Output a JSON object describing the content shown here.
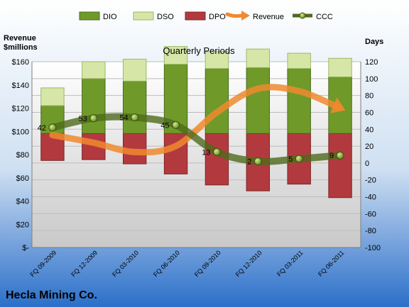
{
  "chart_data": {
    "type": "bar",
    "title": "Quarterly Periods",
    "left_axis_label": [
      "Revenue",
      "$millions"
    ],
    "right_axis_label": "Days",
    "company": "Hecla Mining Co.",
    "categories": [
      "FQ 09-2009",
      "FQ 12-2009",
      "FQ 03-2010",
      "FQ 06-2010",
      "FQ 09-2010",
      "FQ 12-2010",
      "FQ 03-2011",
      "FQ 06-2011"
    ],
    "left_ticks": [
      "$-",
      "$20",
      "$40",
      "$60",
      "$80",
      "$100",
      "$120",
      "$140",
      "$160"
    ],
    "right_ticks": [
      "-100",
      "-80",
      "-60",
      "-40",
      "-20",
      "0",
      "20",
      "40",
      "60",
      "80",
      "100",
      "120"
    ],
    "ylim_right": [
      -100,
      120
    ],
    "series": [
      {
        "name": "DIO",
        "values": [
          -2,
          30,
          27,
          47,
          42,
          43,
          42,
          32
        ]
      },
      {
        "name": "DSO",
        "values": [
          21,
          20,
          26,
          21,
          20,
          22,
          18,
          22
        ]
      },
      {
        "name": "DPO",
        "values": [
          -32,
          -31,
          -36,
          -48,
          -61,
          -68,
          -60,
          -76
        ]
      },
      {
        "name": "Revenue",
        "values": [
          33,
          24,
          13,
          20,
          60,
          88,
          85,
          65
        ]
      },
      {
        "name": "CCC",
        "values": [
          42,
          53,
          54,
          45,
          13,
          2,
          5,
          9
        ]
      }
    ],
    "ccc_labels": [
      "42",
      "53",
      "54",
      "45",
      "13",
      "2",
      "5",
      "9"
    ],
    "colors": {
      "dio": "#6f9a2a",
      "dso": "#d5e6a6",
      "dpo": "#b23a3e",
      "revenue": "#f08a2e",
      "ccc": "#4f6a1c"
    }
  }
}
